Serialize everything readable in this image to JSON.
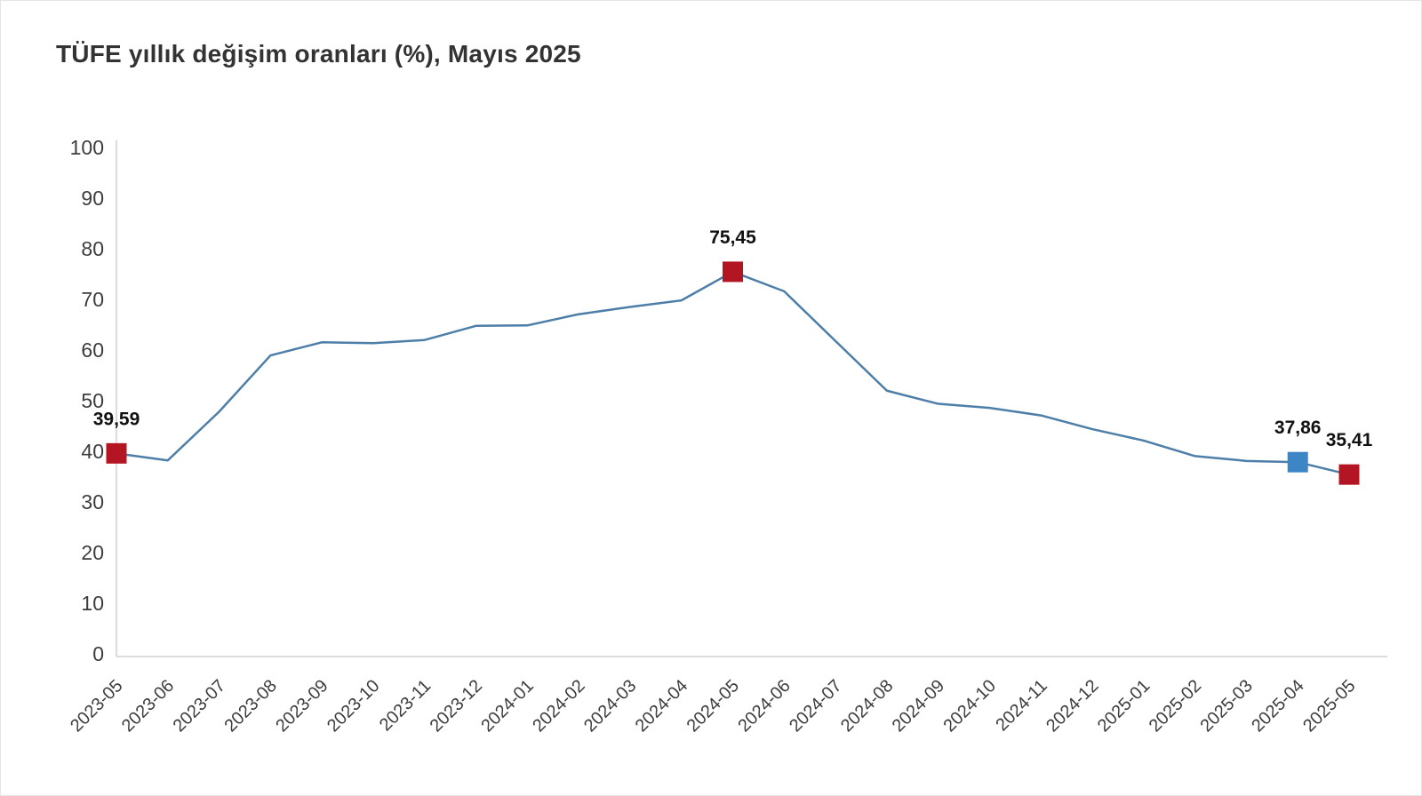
{
  "title": "TÜFE yıllık değişim oranları (%), Mayıs 2025",
  "chart_data": {
    "type": "line",
    "title": "TÜFE yıllık değişim oranları (%), Mayıs 2025",
    "xlabel": "",
    "ylabel": "",
    "categories": [
      "2023-05",
      "2023-06",
      "2023-07",
      "2023-08",
      "2023-09",
      "2023-10",
      "2023-11",
      "2023-12",
      "2024-01",
      "2024-02",
      "2024-03",
      "2024-04",
      "2024-05",
      "2024-06",
      "2024-07",
      "2024-08",
      "2024-09",
      "2024-10",
      "2024-11",
      "2024-12",
      "2025-01",
      "2025-02",
      "2025-03",
      "2025-04",
      "2025-05"
    ],
    "series": [
      {
        "name": "TÜFE yıllık değişim oranı (%)",
        "values": [
          39.59,
          38.21,
          47.83,
          58.94,
          61.53,
          61.36,
          61.98,
          64.77,
          64.86,
          67.07,
          68.5,
          69.8,
          75.45,
          71.6,
          61.78,
          51.97,
          49.38,
          48.58,
          47.09,
          44.38,
          42.12,
          39.05,
          38.1,
          37.86,
          35.41
        ]
      }
    ],
    "ylim": [
      0,
      100
    ],
    "yticks": [
      0,
      10,
      20,
      30,
      40,
      50,
      60,
      70,
      80,
      90,
      100
    ],
    "grid": false,
    "legend_position": "none",
    "x_tick_rotation": -45,
    "annotations": [
      {
        "index": 0,
        "label": "39,59",
        "marker_color": "#b31523"
      },
      {
        "index": 12,
        "label": "75,45",
        "marker_color": "#b31523"
      },
      {
        "index": 23,
        "label": "37,86",
        "marker_color": "#3c85c6"
      },
      {
        "index": 24,
        "label": "35,41",
        "marker_color": "#b31523"
      }
    ],
    "colors": {
      "line": "#4d7ea8",
      "axis": "#dcdcdc",
      "tick_label": "#3d3d3d",
      "data_label": "#111111",
      "title": "#333333",
      "background": "#ffffff"
    }
  }
}
